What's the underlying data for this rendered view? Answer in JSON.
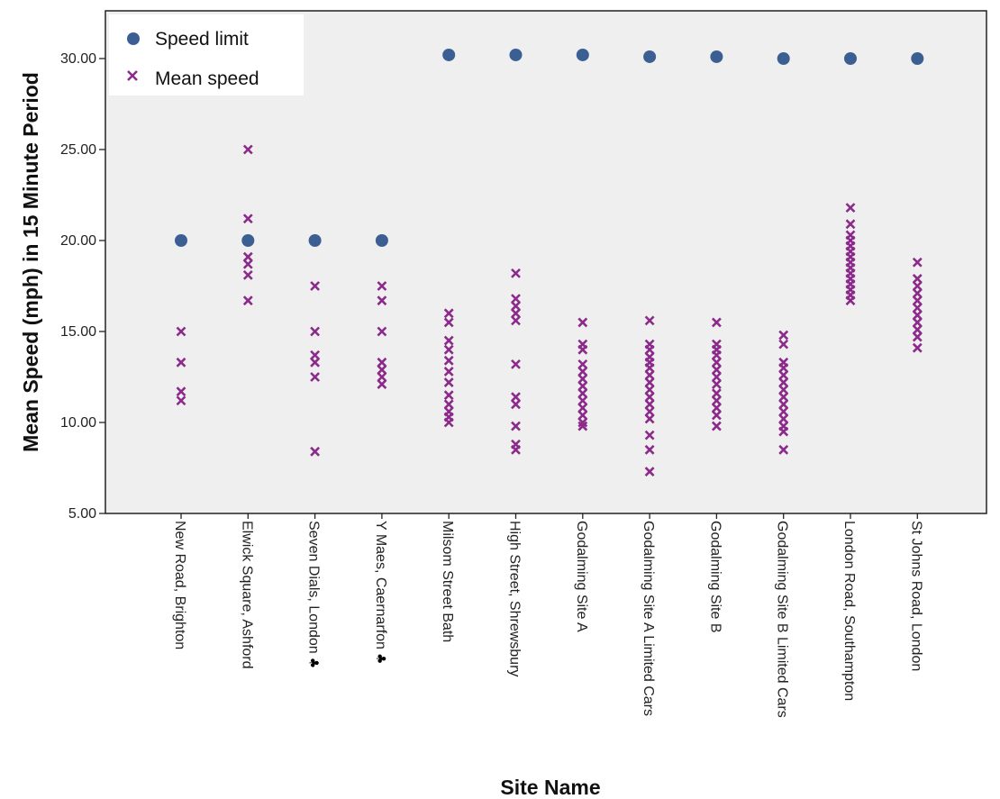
{
  "chart_data": {
    "type": "scatter",
    "xlabel": "Site Name",
    "ylabel": "Mean Speed (mph) in 15 Minute Period",
    "ylim": [
      5,
      30.8
    ],
    "yticks": [
      "5.00",
      "10.00",
      "15.00",
      "20.00",
      "25.00",
      "30.00"
    ],
    "grid": false,
    "legend_position": "top-left",
    "colors": {
      "limit": "#3b5f93",
      "mean": "#8b2a8b",
      "plot_bg": "#efefef"
    },
    "categories": [
      "New Road, Brighton",
      "Elwick Square, Ashford",
      "Seven Dials, London",
      "Y Maes, Caernarfon",
      "Milsom Street Bath",
      "High Street, Shrewsbury",
      "Godalming Site A",
      "Godalming Site A Limited Cars",
      "Godalming Site B",
      "Godalming Site B Limited Cars",
      "London Road, Southampton",
      "St Johns Road, London"
    ],
    "category_notes": [
      "",
      "",
      "♣",
      "♣",
      "",
      "",
      "",
      "",
      "",
      "",
      "",
      ""
    ],
    "series": [
      {
        "name": "Speed limit",
        "marker": "circle",
        "values": [
          20,
          20,
          20,
          20,
          30.2,
          30.2,
          30.2,
          30.1,
          30.1,
          30.0,
          30.0,
          30.0
        ]
      },
      {
        "name": "Mean speed",
        "marker": "x",
        "points": [
          [
            15.0,
            13.3,
            11.7,
            11.2
          ],
          [
            25.0,
            21.2,
            20.0,
            19.1,
            18.7,
            18.1,
            16.7
          ],
          [
            17.5,
            15.0,
            13.7,
            13.3,
            12.5,
            8.4
          ],
          [
            17.5,
            16.7,
            15.0,
            13.3,
            12.9,
            12.5,
            12.1
          ],
          [
            16.0,
            15.5,
            14.5,
            14.0,
            13.4,
            12.8,
            12.2,
            11.5,
            11.0,
            10.6,
            10.3,
            10.0
          ],
          [
            18.2,
            16.8,
            16.4,
            16.0,
            15.6,
            13.2,
            11.4,
            11.0,
            9.8,
            8.8,
            8.5
          ],
          [
            15.5,
            14.3,
            14.0,
            13.2,
            12.8,
            12.4,
            12.0,
            11.6,
            11.2,
            10.8,
            10.4,
            10.0,
            9.8
          ],
          [
            15.6,
            14.3,
            14.0,
            13.6,
            13.3,
            13.0,
            12.6,
            12.2,
            11.8,
            11.4,
            11.0,
            10.6,
            10.2,
            9.3,
            8.5,
            7.3
          ],
          [
            15.5,
            14.3,
            14.0,
            13.7,
            13.3,
            12.9,
            12.5,
            12.1,
            11.6,
            11.2,
            10.8,
            10.4,
            9.8
          ],
          [
            14.8,
            14.3,
            13.3,
            13.0,
            12.6,
            12.2,
            11.8,
            11.4,
            11.0,
            10.6,
            10.2,
            9.8,
            9.5,
            8.5
          ],
          [
            21.8,
            20.9,
            20.3,
            20.0,
            19.7,
            19.4,
            19.1,
            18.8,
            18.5,
            18.2,
            17.9,
            17.6,
            17.3,
            17.0,
            16.7
          ],
          [
            18.8,
            17.9,
            17.5,
            17.1,
            16.7,
            16.3,
            15.9,
            15.5,
            15.1,
            14.7,
            14.1
          ]
        ]
      }
    ]
  }
}
